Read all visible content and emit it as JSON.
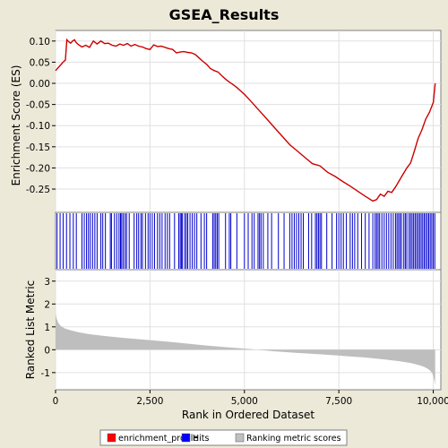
{
  "chart_data": {
    "type": "line",
    "title": "GSEA_Results",
    "x_label": "Rank in Ordered Dataset",
    "x_range": [
      0,
      10200
    ],
    "x_ticks": [
      0,
      2500,
      5000,
      7500,
      10000
    ],
    "x_tick_labels": [
      "0",
      "2,500",
      "5,000",
      "7,500",
      "10,000"
    ],
    "es_panel": {
      "y_label": "Enrichment Score (ES)",
      "y_range": [
        -0.305,
        0.125
      ],
      "y_ticks": [
        0.1,
        0.05,
        0.0,
        -0.05,
        -0.1,
        -0.15,
        -0.2,
        -0.25
      ],
      "y_tick_labels": [
        "0.10",
        "0.05",
        "0.00",
        "-0.05",
        "-0.10",
        "-0.15",
        "-0.20",
        "-0.25"
      ],
      "color": "#cc0000",
      "x": [
        0,
        100,
        200,
        260,
        300,
        350,
        400,
        450,
        500,
        550,
        600,
        700,
        800,
        900,
        1000,
        1100,
        1200,
        1300,
        1400,
        1500,
        1600,
        1700,
        1800,
        1900,
        2000,
        2100,
        2200,
        2300,
        2400,
        2500,
        2600,
        2700,
        2800,
        2900,
        3000,
        3100,
        3200,
        3300,
        3400,
        3500,
        3600,
        3700,
        3800,
        3900,
        4000,
        4100,
        4200,
        4300,
        4400,
        4500,
        4600,
        4700,
        4800,
        4900,
        5000,
        5200,
        5400,
        5600,
        5800,
        6000,
        6200,
        6400,
        6600,
        6800,
        7000,
        7200,
        7400,
        7600,
        7800,
        8000,
        8200,
        8400,
        8500,
        8600,
        8700,
        8800,
        8900,
        9000,
        9100,
        9200,
        9300,
        9400,
        9500,
        9600,
        9700,
        9800,
        9900,
        10000,
        10050
      ],
      "y": [
        0.03,
        0.04,
        0.05,
        0.055,
        0.103,
        0.098,
        0.095,
        0.1,
        0.103,
        0.096,
        0.092,
        0.086,
        0.09,
        0.085,
        0.1,
        0.093,
        0.1,
        0.094,
        0.095,
        0.09,
        0.088,
        0.093,
        0.09,
        0.094,
        0.088,
        0.092,
        0.088,
        0.086,
        0.082,
        0.08,
        0.091,
        0.087,
        0.088,
        0.085,
        0.082,
        0.08,
        0.072,
        0.074,
        0.075,
        0.073,
        0.072,
        0.068,
        0.06,
        0.052,
        0.045,
        0.035,
        0.03,
        0.027,
        0.018,
        0.01,
        0.003,
        -0.003,
        -0.01,
        -0.018,
        -0.026,
        -0.045,
        -0.065,
        -0.085,
        -0.105,
        -0.125,
        -0.145,
        -0.16,
        -0.175,
        -0.19,
        -0.195,
        -0.21,
        -0.22,
        -0.232,
        -0.243,
        -0.255,
        -0.267,
        -0.278,
        -0.275,
        -0.262,
        -0.267,
        -0.255,
        -0.258,
        -0.245,
        -0.23,
        -0.215,
        -0.2,
        -0.188,
        -0.16,
        -0.13,
        -0.11,
        -0.085,
        -0.068,
        -0.045,
        0.0
      ]
    },
    "hits_panel": {
      "label": "Hits",
      "color": "#0000cc",
      "positions": [
        40,
        120,
        200,
        290,
        380,
        470,
        550,
        700,
        760,
        820,
        870,
        920,
        980,
        1040,
        1100,
        1200,
        1250,
        1320,
        1450,
        1480,
        1560,
        1620,
        1680,
        1720,
        1750,
        1790,
        1840,
        1880,
        1950,
        2080,
        2150,
        2200,
        2260,
        2300,
        2380,
        2450,
        2500,
        2560,
        2620,
        2700,
        2760,
        2820,
        2900,
        2960,
        3020,
        3150,
        3260,
        3300,
        3330,
        3360,
        3420,
        3460,
        3500,
        3560,
        3620,
        3680,
        3740,
        3850,
        3940,
        4000,
        4160,
        4200,
        4240,
        4280,
        4320,
        4500,
        4600,
        4640,
        4800,
        5000,
        5100,
        5200,
        5260,
        5360,
        5400,
        5440,
        5500,
        5620,
        5720,
        5900,
        6050,
        6200,
        6260,
        6320,
        6380,
        6440,
        6500,
        6560,
        6700,
        6780,
        6880,
        6920,
        6960,
        7000,
        7040,
        7180,
        7320,
        7440,
        7500,
        7560,
        7620,
        7700,
        7800,
        7860,
        7920,
        8000,
        8100,
        8200,
        8300,
        8400,
        8460,
        8500,
        8540,
        8580,
        8640,
        8700,
        8760,
        8820,
        8880,
        8940,
        9000,
        9040,
        9080,
        9120,
        9160,
        9220,
        9260,
        9300,
        9360,
        9400,
        9440,
        9480,
        9520,
        9560,
        9600,
        9640,
        9680,
        9720,
        9760,
        9800,
        9840,
        9880,
        9920,
        9960,
        10000,
        10040
      ]
    },
    "metric_panel": {
      "y_label": "Ranked List Metric",
      "label": "Ranking metric scores",
      "y_range": [
        -1.75,
        3.5
      ],
      "y_ticks": [
        3,
        2,
        1,
        0,
        -1
      ],
      "y_tick_labels": [
        "3",
        "2",
        "1",
        "0",
        "-1"
      ],
      "color": "#bebebe",
      "x": [
        0,
        30,
        80,
        150,
        250,
        400,
        600,
        900,
        1300,
        1800,
        2500,
        3200,
        3900,
        4600,
        5200,
        5800,
        6400,
        7000,
        7600,
        8200,
        8700,
        9100,
        9400,
        9600,
        9750,
        9850,
        9920,
        9970,
        10000,
        10030,
        10050
      ],
      "y": [
        1.6,
        1.35,
        1.15,
        1.02,
        0.93,
        0.85,
        0.77,
        0.68,
        0.6,
        0.52,
        0.42,
        0.32,
        0.2,
        0.1,
        0.02,
        -0.07,
        -0.14,
        -0.2,
        -0.27,
        -0.34,
        -0.42,
        -0.5,
        -0.58,
        -0.66,
        -0.74,
        -0.83,
        -0.92,
        -1.02,
        -1.15,
        -1.35,
        -1.55
      ]
    },
    "legend": {
      "placement": "bottom",
      "entries": [
        {
          "label": "enrichment_profile",
          "color": "#ff0000"
        },
        {
          "label": "Hits",
          "color": "#0000ff"
        },
        {
          "label": "Ranking metric scores",
          "color": "#c0c0c0"
        }
      ]
    }
  }
}
